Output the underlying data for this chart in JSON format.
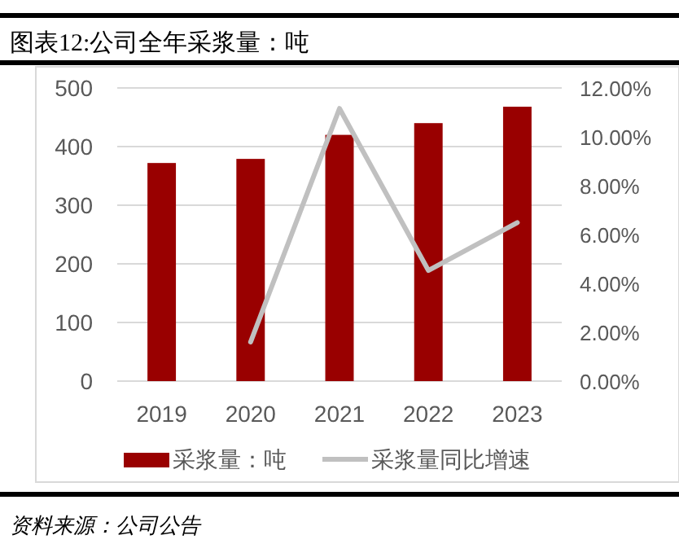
{
  "chart_data": {
    "type": "bar",
    "title": "图表12:公司全年采浆量：吨",
    "annotations": [
      "资料来源：公司公告"
    ],
    "categories": [
      "2019",
      "2020",
      "2021",
      "2022",
      "2023"
    ],
    "series": [
      {
        "name": "采浆量：吨",
        "color": "#990000",
        "values": [
          372,
          379,
          420,
          440,
          468
        ]
      },
      {
        "name": "采浆量同比增速",
        "type": "line",
        "axis": "y2",
        "color": "#c0c0c0",
        "values": [
          null,
          1.6,
          11.16,
          4.53,
          6.49
        ]
      }
    ],
    "ylim": [
      0,
      500
    ],
    "yticks": [
      0,
      100,
      200,
      300,
      400,
      500
    ],
    "y2lim": [
      0,
      12
    ],
    "y2ticks": [
      {
        "value": 0,
        "label": "0.00%"
      },
      {
        "value": 2,
        "label": "2.00%"
      },
      {
        "value": 4,
        "label": "4.00%"
      },
      {
        "value": 6,
        "label": "6.00%"
      },
      {
        "value": 8,
        "label": "8.00%"
      },
      {
        "value": 10,
        "label": "10.00%"
      },
      {
        "value": 12,
        "label": "12.00%"
      }
    ],
    "grid": "y",
    "legend": "bottom",
    "marker": "none",
    "line_style": "solid"
  }
}
